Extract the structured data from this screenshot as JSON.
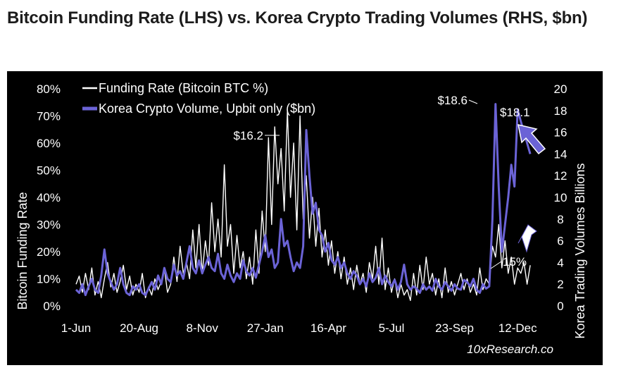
{
  "title": "Bitcoin Funding Rate (LHS) vs. Korea Crypto Trading Volumes (RHS, $bn)",
  "colors": {
    "funding": "#ffffff",
    "volume": "#6b63d6",
    "background": "#000000",
    "text": "#ffffff"
  },
  "chart_data": {
    "type": "line",
    "xlabel": "",
    "y_left_label": "Bitcoin Funding Rate",
    "y_right_label": "Korea Trading Volumes Billions",
    "y_left_ticks": [
      "0%",
      "10%",
      "20%",
      "30%",
      "40%",
      "50%",
      "60%",
      "70%",
      "80%"
    ],
    "y_right_ticks": [
      "0",
      "2",
      "4",
      "6",
      "8",
      "10",
      "12",
      "14",
      "16",
      "18",
      "20"
    ],
    "ylim_left": [
      0,
      80
    ],
    "ylim_right": [
      0,
      20
    ],
    "x_tick_labels": [
      "1-Jun",
      "20-Aug",
      "8-Nov",
      "27-Jan",
      "16-Apr",
      "5-Jul",
      "23-Sep",
      "12-Dec"
    ],
    "legend": [
      "Funding Rate (Bitcoin BTC %)",
      "Korea Crypto Volume, Upbit only ($bn)"
    ],
    "legend_position": "top-left",
    "annotations": [
      "$16.2",
      "$18.6",
      "$18.1",
      "15%"
    ],
    "source": "10xResearch.co",
    "x_day_index_note": "series x values are day offsets from 1-Jun; tick labels at 0,80,160,240,320,400,480,560",
    "series": [
      {
        "name": "Funding Rate (Bitcoin BTC %)",
        "axis": "left",
        "x": [
          0,
          4,
          8,
          12,
          16,
          20,
          24,
          28,
          32,
          36,
          40,
          44,
          48,
          52,
          56,
          60,
          64,
          68,
          72,
          76,
          80,
          84,
          88,
          92,
          96,
          100,
          104,
          108,
          112,
          116,
          120,
          124,
          128,
          132,
          136,
          140,
          144,
          148,
          152,
          156,
          160,
          164,
          168,
          172,
          176,
          180,
          184,
          188,
          192,
          196,
          200,
          204,
          208,
          212,
          216,
          220,
          224,
          228,
          232,
          236,
          240,
          244,
          248,
          252,
          256,
          260,
          264,
          268,
          272,
          276,
          280,
          284,
          288,
          292,
          296,
          300,
          304,
          308,
          312,
          316,
          320,
          324,
          328,
          332,
          336,
          340,
          344,
          348,
          352,
          356,
          360,
          364,
          368,
          372,
          376,
          380,
          384,
          388,
          392,
          396,
          400,
          404,
          408,
          412,
          416,
          420,
          424,
          428,
          432,
          436,
          440,
          444,
          448,
          452,
          456,
          460,
          464,
          468,
          472,
          476,
          480,
          484,
          488,
          492,
          496,
          500,
          504,
          508,
          512,
          516,
          520,
          524,
          528,
          532,
          536,
          540,
          544,
          548,
          552,
          556,
          560,
          564,
          568,
          572,
          576
        ],
        "values": [
          8,
          11,
          5,
          12,
          6,
          14,
          4,
          9,
          3,
          10,
          16,
          7,
          12,
          5,
          9,
          15,
          6,
          11,
          4,
          8,
          5,
          12,
          3,
          7,
          4,
          10,
          6,
          9,
          14,
          5,
          8,
          18,
          9,
          22,
          12,
          16,
          10,
          28,
          14,
          30,
          12,
          24,
          15,
          38,
          20,
          32,
          18,
          52,
          22,
          30,
          12,
          26,
          14,
          20,
          10,
          18,
          8,
          28,
          12,
          35,
          20,
          62,
          30,
          66,
          45,
          58,
          35,
          72,
          40,
          60,
          28,
          70,
          32,
          48,
          25,
          40,
          22,
          36,
          18,
          28,
          15,
          24,
          12,
          20,
          10,
          18,
          8,
          14,
          6,
          15,
          8,
          12,
          5,
          16,
          10,
          22,
          8,
          25,
          6,
          14,
          5,
          10,
          3,
          8,
          4,
          6,
          2,
          12,
          4,
          15,
          6,
          18,
          8,
          12,
          4,
          10,
          3,
          14,
          5,
          9,
          4,
          8,
          12,
          6,
          10,
          5,
          8,
          4,
          14,
          6,
          10,
          8,
          22,
          18,
          30,
          14,
          24,
          12,
          18,
          8,
          14,
          12,
          16,
          8,
          15
        ]
      },
      {
        "name": "Korea Crypto Volume, Upbit only ($bn)",
        "axis": "right",
        "x": [
          0,
          4,
          8,
          12,
          16,
          20,
          24,
          28,
          32,
          36,
          40,
          44,
          48,
          52,
          56,
          60,
          64,
          68,
          72,
          76,
          80,
          84,
          88,
          92,
          96,
          100,
          104,
          108,
          112,
          116,
          120,
          124,
          128,
          132,
          136,
          140,
          144,
          148,
          152,
          156,
          160,
          164,
          168,
          172,
          176,
          180,
          184,
          188,
          192,
          196,
          200,
          204,
          208,
          212,
          216,
          220,
          224,
          228,
          232,
          236,
          240,
          244,
          248,
          252,
          256,
          260,
          264,
          268,
          272,
          276,
          280,
          284,
          288,
          292,
          296,
          300,
          304,
          308,
          312,
          316,
          320,
          324,
          328,
          332,
          336,
          340,
          344,
          348,
          352,
          356,
          360,
          364,
          368,
          372,
          376,
          380,
          384,
          388,
          392,
          396,
          400,
          404,
          408,
          412,
          416,
          420,
          424,
          428,
          432,
          436,
          440,
          444,
          448,
          452,
          456,
          460,
          464,
          468,
          472,
          476,
          480,
          484,
          488,
          492,
          496,
          500,
          504,
          508,
          512,
          516,
          520,
          524,
          528,
          532,
          536,
          540,
          544,
          548,
          552,
          556,
          560,
          564,
          568,
          572,
          576
        ],
        "values": [
          1.5,
          1.2,
          2.0,
          1.0,
          1.8,
          2.5,
          1.5,
          1.2,
          2.8,
          5.2,
          3.0,
          2.2,
          1.5,
          2.0,
          3.5,
          2.0,
          1.2,
          1.0,
          1.8,
          1.5,
          2.0,
          1.2,
          1.0,
          1.6,
          2.2,
          1.5,
          2.8,
          2.0,
          3.5,
          2.5,
          2.2,
          3.8,
          2.8,
          3.2,
          2.5,
          4.0,
          5.5,
          3.5,
          3.0,
          4.2,
          3.0,
          3.8,
          4.5,
          3.5,
          3.2,
          4.8,
          3.0,
          2.5,
          3.8,
          2.8,
          2.2,
          3.0,
          2.5,
          4.2,
          3.2,
          2.8,
          3.5,
          2.6,
          3.8,
          5.0,
          6.5,
          4.5,
          5.2,
          3.5,
          4.0,
          8.0,
          5.5,
          6.0,
          4.5,
          3.2,
          4.0,
          3.5,
          5.5,
          16.2,
          12.0,
          8.5,
          9.5,
          7.0,
          6.5,
          5.0,
          5.8,
          4.2,
          3.8,
          4.5,
          3.5,
          4.0,
          3.0,
          2.5,
          3.2,
          2.8,
          2.0,
          2.5,
          1.8,
          3.0,
          2.2,
          2.6,
          3.5,
          2.0,
          2.8,
          2.2,
          1.8,
          2.4,
          1.5,
          2.2,
          3.8,
          2.0,
          1.5,
          1.8,
          1.6,
          1.2,
          2.0,
          1.5,
          1.8,
          1.4,
          2.5,
          1.8,
          1.5,
          2.2,
          1.8,
          1.4,
          2.0,
          1.6,
          1.5,
          2.4,
          2.2,
          1.8,
          2.5,
          1.5,
          1.2,
          2.0,
          1.6,
          1.8,
          8.0,
          18.6,
          11.0,
          5.0,
          7.5,
          10.0,
          13.0,
          11.0,
          18.1,
          17.0,
          16.0,
          15.0,
          14.0
        ]
      }
    ]
  }
}
